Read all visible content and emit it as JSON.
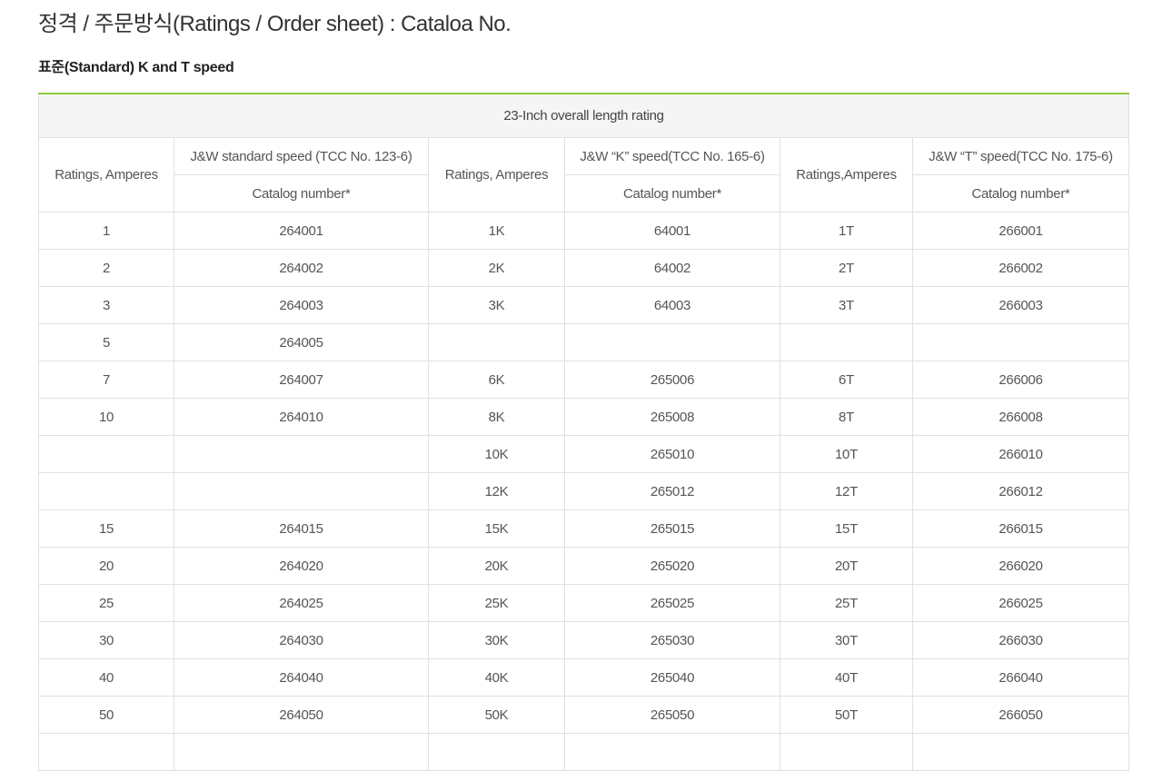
{
  "page": {
    "title": "정격 / 주문방식(Ratings / Order sheet) : Cataloa No.",
    "subtitle": "표준(Standard) K and T speed"
  },
  "table": {
    "caption": "23-Inch overall length rating",
    "headers": {
      "ratings_1": "Ratings, Amperes",
      "standard_speed": "J&W standard speed (TCC No. 123-6)",
      "ratings_2": "Ratings, Amperes",
      "k_speed": "J&W “K” speed(TCC No. 165-6)",
      "ratings_3": "Ratings,Amperes",
      "t_speed": "J&W “T” speed(TCC No. 175-6)",
      "catalog_1": "Catalog number*",
      "catalog_2": "Catalog number*",
      "catalog_3": "Catalog number*"
    },
    "rows": [
      [
        "1",
        "264001",
        "1K",
        "64001",
        "1T",
        "266001"
      ],
      [
        "2",
        "264002",
        "2K",
        "64002",
        "2T",
        "266002"
      ],
      [
        "3",
        "264003",
        "3K",
        "64003",
        "3T",
        "266003"
      ],
      [
        "5",
        "264005",
        "",
        "",
        "",
        ""
      ],
      [
        "7",
        "264007",
        "6K",
        "265006",
        "6T",
        "266006"
      ],
      [
        "10",
        "264010",
        "8K",
        "265008",
        "8T",
        "266008"
      ],
      [
        "",
        "",
        "10K",
        "265010",
        "10T",
        "266010"
      ],
      [
        "",
        "",
        "12K",
        "265012",
        "12T",
        "266012"
      ],
      [
        "15",
        "264015",
        "15K",
        "265015",
        "15T",
        "266015"
      ],
      [
        "20",
        "264020",
        "20K",
        "265020",
        "20T",
        "266020"
      ],
      [
        "25",
        "264025",
        "25K",
        "265025",
        "25T",
        "266025"
      ],
      [
        "30",
        "264030",
        "30K",
        "265030",
        "30T",
        "266030"
      ],
      [
        "40",
        "264040",
        "40K",
        "265040",
        "40T",
        "266040"
      ],
      [
        "50",
        "264050",
        "50K",
        "265050",
        "50T",
        "266050"
      ],
      [
        "",
        "",
        "",
        "",
        "",
        ""
      ]
    ]
  },
  "colors": {
    "accent": "#8cc63f",
    "header_bg": "#f5f5f5",
    "border": "#e0e0e0"
  }
}
